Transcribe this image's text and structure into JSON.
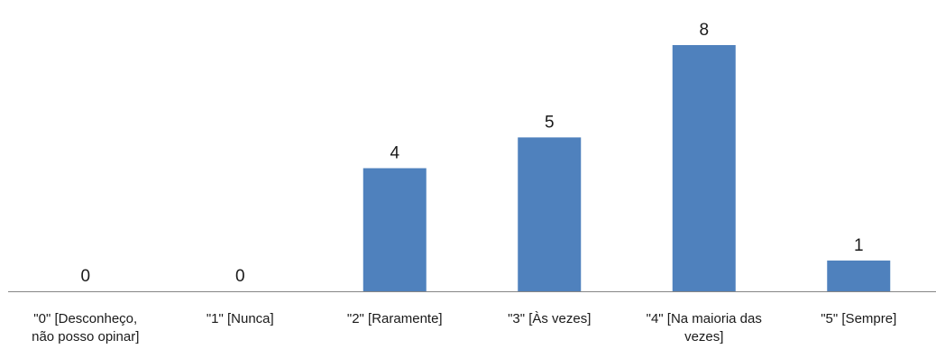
{
  "chart_data": {
    "type": "bar",
    "categories": [
      [
        "\"0\" [Desconheço,",
        "não posso opinar]"
      ],
      [
        "\"1\" [Nunca]"
      ],
      [
        "\"2\" [Raramente]"
      ],
      [
        "\"3\" [Às vezes]"
      ],
      [
        "\"4\" [Na maioria das",
        "vezes]"
      ],
      [
        "\"5\" [Sempre]"
      ]
    ],
    "values": [
      0,
      0,
      4,
      5,
      8,
      1
    ],
    "data_labels": [
      "0",
      "0",
      "4",
      "5",
      "8",
      "1"
    ],
    "ylim": [
      0,
      8
    ],
    "grid": false,
    "legend": "none",
    "bar_color": "#4F81BD",
    "axis_color": "#868686"
  }
}
